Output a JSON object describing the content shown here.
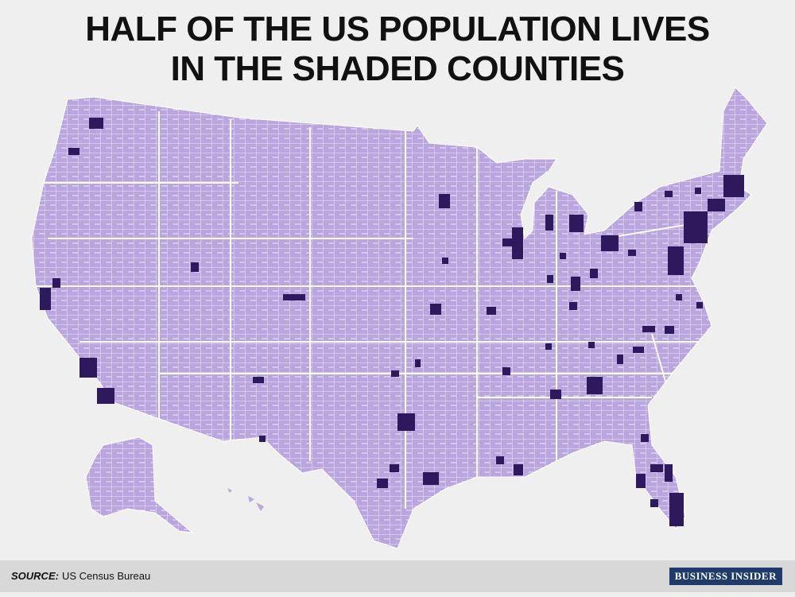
{
  "header": {
    "title_lines": [
      "HALF OF THE US POPULATION LIVES",
      "IN THE SHADED COUNTIES"
    ]
  },
  "footer": {
    "source_label": "SOURCE:",
    "source_text": "US Census Bureau",
    "logo": "BUSINESS INSIDER"
  }
}
